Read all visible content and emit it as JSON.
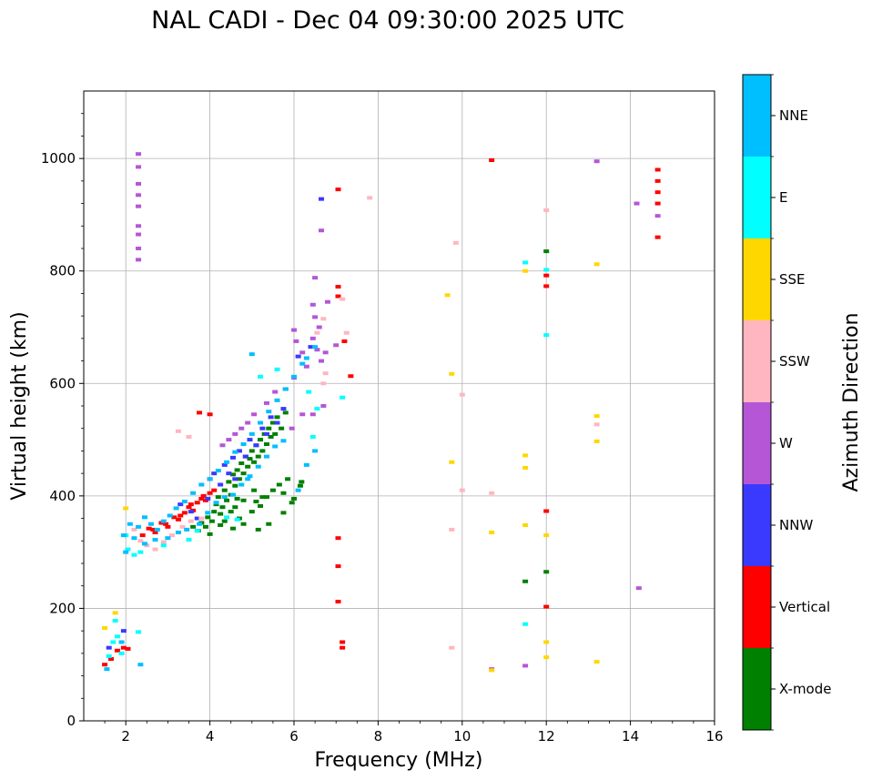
{
  "chart_data": {
    "type": "scatter",
    "title": "NAL CADI - Dec 04 09:30:00 2025 UTC",
    "xlabel": "Frequency (MHz)",
    "ylabel": "Virtual height (km)",
    "xlim": [
      1,
      16
    ],
    "ylim": [
      0,
      1120
    ],
    "xticks": [
      2,
      4,
      6,
      8,
      10,
      12,
      14,
      16
    ],
    "yticks": [
      0,
      200,
      400,
      600,
      800,
      1000
    ],
    "xtick_labels": [
      "2",
      "4",
      "6",
      "8",
      "10",
      "12",
      "14",
      "16"
    ],
    "ytick_labels": [
      "0",
      "200",
      "400",
      "600",
      "800",
      "1000"
    ],
    "grid": true,
    "colorbar": {
      "label": "Azimuth Direction",
      "categories": [
        "X-mode",
        "Vertical",
        "NNW",
        "W",
        "SSW",
        "SSE",
        "E",
        "NNE"
      ],
      "colors": [
        "#008000",
        "#ff0000",
        "#3a3aff",
        "#b556d6",
        "#ffb6c1",
        "#ffd700",
        "#00ffff",
        "#00bfff"
      ]
    },
    "series": [
      {
        "name": "X-mode",
        "points": [
          [
            3.72,
            338
          ],
          [
            3.8,
            352
          ],
          [
            3.9,
            345
          ],
          [
            3.95,
            362
          ],
          [
            4.05,
            355
          ],
          [
            4.1,
            372
          ],
          [
            4.15,
            385
          ],
          [
            4.2,
            398
          ],
          [
            4.25,
            368
          ],
          [
            4.3,
            380
          ],
          [
            4.35,
            410
          ],
          [
            4.4,
            392
          ],
          [
            4.45,
            425
          ],
          [
            4.5,
            402
          ],
          [
            4.55,
            438
          ],
          [
            4.6,
            418
          ],
          [
            4.65,
            446
          ],
          [
            4.7,
            430
          ],
          [
            4.75,
            458
          ],
          [
            4.8,
            440
          ],
          [
            4.85,
            470
          ],
          [
            4.9,
            452
          ],
          [
            4.95,
            466
          ],
          [
            5.0,
            480
          ],
          [
            5.05,
            460
          ],
          [
            5.1,
            490
          ],
          [
            5.15,
            470
          ],
          [
            5.2,
            500
          ],
          [
            5.25,
            480
          ],
          [
            5.3,
            510
          ],
          [
            5.35,
            492
          ],
          [
            5.4,
            520
          ],
          [
            5.45,
            505
          ],
          [
            5.5,
            530
          ],
          [
            5.55,
            510
          ],
          [
            5.6,
            540
          ],
          [
            5.7,
            520
          ],
          [
            5.8,
            548
          ],
          [
            4.5,
            372
          ],
          [
            4.6,
            380
          ],
          [
            4.7,
            360
          ],
          [
            4.8,
            392
          ],
          [
            5.0,
            372
          ],
          [
            5.1,
            390
          ],
          [
            5.2,
            382
          ],
          [
            5.35,
            398
          ],
          [
            5.5,
            410
          ],
          [
            5.65,
            420
          ],
          [
            5.75,
            405
          ],
          [
            5.85,
            430
          ],
          [
            6.0,
            395
          ],
          [
            4.35,
            355
          ],
          [
            4.55,
            342
          ],
          [
            4.8,
            350
          ],
          [
            5.15,
            340
          ],
          [
            5.4,
            350
          ],
          [
            5.75,
            370
          ],
          [
            5.95,
            388
          ],
          [
            3.6,
            345
          ],
          [
            4.0,
            332
          ],
          [
            4.25,
            348
          ],
          [
            4.65,
            395
          ],
          [
            5.05,
            410
          ],
          [
            5.25,
            398
          ],
          [
            6.15,
            418
          ],
          [
            6.18,
            425
          ],
          [
            12.0,
            835
          ],
          [
            12.0,
            265
          ],
          [
            11.5,
            248
          ]
        ]
      },
      {
        "name": "Vertical",
        "points": [
          [
            2.4,
            330
          ],
          [
            2.55,
            342
          ],
          [
            2.7,
            335
          ],
          [
            2.85,
            352
          ],
          [
            3.0,
            345
          ],
          [
            3.15,
            362
          ],
          [
            3.25,
            358
          ],
          [
            3.4,
            370
          ],
          [
            3.5,
            380
          ],
          [
            3.6,
            374
          ],
          [
            3.7,
            388
          ],
          [
            3.8,
            395
          ],
          [
            3.9,
            392
          ],
          [
            4.0,
            405
          ],
          [
            4.1,
            410
          ],
          [
            3.3,
            365
          ],
          [
            3.55,
            385
          ],
          [
            3.85,
            400
          ],
          [
            2.95,
            350
          ],
          [
            2.65,
            340
          ],
          [
            4.0,
            545
          ],
          [
            3.75,
            548
          ],
          [
            1.5,
            100
          ],
          [
            1.65,
            110
          ],
          [
            1.8,
            125
          ],
          [
            1.95,
            130
          ],
          [
            2.05,
            128
          ],
          [
            7.05,
            945
          ],
          [
            7.05,
            772
          ],
          [
            7.05,
            755
          ],
          [
            7.2,
            675
          ],
          [
            7.35,
            613
          ],
          [
            7.05,
            325
          ],
          [
            7.05,
            275
          ],
          [
            7.05,
            212
          ],
          [
            7.15,
            140
          ],
          [
            7.15,
            130
          ],
          [
            10.7,
            997
          ],
          [
            12.0,
            792
          ],
          [
            12.0,
            773
          ],
          [
            12.0,
            373
          ],
          [
            12.0,
            203
          ],
          [
            14.65,
            980
          ],
          [
            14.65,
            960
          ],
          [
            14.65,
            940
          ],
          [
            14.65,
            920
          ],
          [
            14.65,
            860
          ]
        ]
      },
      {
        "name": "NNW",
        "points": [
          [
            3.3,
            385
          ],
          [
            3.55,
            372
          ],
          [
            3.7,
            360
          ],
          [
            3.95,
            395
          ],
          [
            4.0,
            430
          ],
          [
            4.1,
            440
          ],
          [
            4.25,
            420
          ],
          [
            4.35,
            455
          ],
          [
            4.45,
            440
          ],
          [
            4.55,
            468
          ],
          [
            4.6,
            430
          ],
          [
            4.7,
            480
          ],
          [
            4.85,
            470
          ],
          [
            4.95,
            500
          ],
          [
            5.1,
            490
          ],
          [
            5.25,
            520
          ],
          [
            5.35,
            510
          ],
          [
            5.45,
            540
          ],
          [
            5.6,
            530
          ],
          [
            5.75,
            555
          ],
          [
            6.1,
            648
          ],
          [
            6.4,
            665
          ],
          [
            6.65,
            928
          ],
          [
            1.95,
            160
          ],
          [
            1.6,
            130
          ]
        ]
      },
      {
        "name": "W",
        "points": [
          [
            2.3,
            1008
          ],
          [
            2.3,
            985
          ],
          [
            2.3,
            955
          ],
          [
            2.3,
            935
          ],
          [
            2.3,
            915
          ],
          [
            2.3,
            880
          ],
          [
            2.3,
            865
          ],
          [
            2.3,
            840
          ],
          [
            2.3,
            820
          ],
          [
            6.45,
            740
          ],
          [
            6.5,
            718
          ],
          [
            6.6,
            700
          ],
          [
            6.45,
            680
          ],
          [
            6.55,
            660
          ],
          [
            6.65,
            640
          ],
          [
            6.0,
            695
          ],
          [
            6.05,
            675
          ],
          [
            6.2,
            655
          ],
          [
            6.3,
            630
          ],
          [
            6.0,
            610
          ],
          [
            5.8,
            590
          ],
          [
            5.55,
            585
          ],
          [
            5.35,
            565
          ],
          [
            5.05,
            545
          ],
          [
            4.9,
            530
          ],
          [
            4.75,
            520
          ],
          [
            4.6,
            510
          ],
          [
            4.45,
            500
          ],
          [
            4.3,
            490
          ],
          [
            6.45,
            545
          ],
          [
            6.7,
            560
          ],
          [
            6.2,
            545
          ],
          [
            5.95,
            520
          ],
          [
            6.8,
            745
          ],
          [
            7.0,
            668
          ],
          [
            6.75,
            655
          ],
          [
            13.2,
            995
          ],
          [
            14.15,
            920
          ],
          [
            14.65,
            898
          ],
          [
            14.2,
            236
          ],
          [
            10.7,
            92
          ],
          [
            11.5,
            98
          ],
          [
            6.65,
            872
          ],
          [
            6.5,
            788
          ]
        ]
      },
      {
        "name": "SSW",
        "points": [
          [
            2.2,
            340
          ],
          [
            2.35,
            320
          ],
          [
            2.5,
            312
          ],
          [
            2.7,
            305
          ],
          [
            2.9,
            318
          ],
          [
            3.1,
            330
          ],
          [
            3.35,
            345
          ],
          [
            3.55,
            355
          ],
          [
            3.8,
            360
          ],
          [
            3.25,
            515
          ],
          [
            3.5,
            505
          ],
          [
            6.7,
            715
          ],
          [
            6.55,
            690
          ],
          [
            6.75,
            618
          ],
          [
            7.8,
            930
          ],
          [
            12.0,
            908
          ],
          [
            13.2,
            527
          ],
          [
            10.0,
            580
          ],
          [
            10.0,
            410
          ],
          [
            10.7,
            405
          ],
          [
            9.75,
            340
          ],
          [
            9.75,
            130
          ],
          [
            9.85,
            850
          ],
          [
            7.15,
            750
          ],
          [
            7.25,
            690
          ],
          [
            6.7,
            600
          ]
        ]
      },
      {
        "name": "SSE",
        "points": [
          [
            1.5,
            165
          ],
          [
            1.75,
            192
          ],
          [
            2.0,
            378
          ],
          [
            9.65,
            757
          ],
          [
            9.75,
            617
          ],
          [
            9.75,
            460
          ],
          [
            10.7,
            335
          ],
          [
            10.7,
            90
          ],
          [
            11.5,
            800
          ],
          [
            11.5,
            472
          ],
          [
            11.5,
            450
          ],
          [
            11.5,
            348
          ],
          [
            12.0,
            330
          ],
          [
            12.0,
            140
          ],
          [
            12.0,
            113
          ],
          [
            13.2,
            812
          ],
          [
            13.2,
            542
          ],
          [
            13.2,
            497
          ],
          [
            13.2,
            105
          ]
        ]
      },
      {
        "name": "E",
        "points": [
          [
            1.6,
            115
          ],
          [
            1.7,
            140
          ],
          [
            1.8,
            150
          ],
          [
            1.9,
            120
          ],
          [
            2.0,
            330
          ],
          [
            2.05,
            305
          ],
          [
            2.2,
            295
          ],
          [
            2.35,
            300
          ],
          [
            2.9,
            312
          ],
          [
            3.5,
            322
          ],
          [
            3.7,
            338
          ],
          [
            4.4,
            362
          ],
          [
            4.65,
            358
          ],
          [
            5.2,
            612
          ],
          [
            5.6,
            625
          ],
          [
            6.35,
            585
          ],
          [
            6.55,
            555
          ],
          [
            6.45,
            505
          ],
          [
            7.15,
            575
          ],
          [
            11.5,
            815
          ],
          [
            11.5,
            172
          ],
          [
            12.0,
            802
          ],
          [
            12.0,
            686
          ],
          [
            1.75,
            178
          ],
          [
            2.3,
            158
          ]
        ]
      },
      {
        "name": "NNE",
        "points": [
          [
            2.1,
            350
          ],
          [
            2.3,
            345
          ],
          [
            2.45,
            362
          ],
          [
            2.6,
            350
          ],
          [
            2.75,
            340
          ],
          [
            2.9,
            355
          ],
          [
            3.05,
            365
          ],
          [
            3.2,
            378
          ],
          [
            3.4,
            390
          ],
          [
            3.6,
            405
          ],
          [
            3.8,
            420
          ],
          [
            4.0,
            430
          ],
          [
            4.2,
            445
          ],
          [
            4.4,
            460
          ],
          [
            4.6,
            478
          ],
          [
            4.8,
            492
          ],
          [
            5.0,
            510
          ],
          [
            5.2,
            530
          ],
          [
            5.4,
            550
          ],
          [
            5.6,
            570
          ],
          [
            5.8,
            590
          ],
          [
            6.0,
            612
          ],
          [
            6.2,
            635
          ],
          [
            6.3,
            645
          ],
          [
            6.5,
            665
          ],
          [
            2.2,
            325
          ],
          [
            2.45,
            315
          ],
          [
            2.7,
            322
          ],
          [
            3.0,
            325
          ],
          [
            3.25,
            335
          ],
          [
            3.45,
            340
          ],
          [
            3.75,
            350
          ],
          [
            3.95,
            370
          ],
          [
            4.15,
            388
          ],
          [
            4.35,
            398
          ],
          [
            4.55,
            402
          ],
          [
            4.75,
            420
          ],
          [
            4.95,
            435
          ],
          [
            5.15,
            452
          ],
          [
            5.35,
            470
          ],
          [
            5.55,
            488
          ],
          [
            5.75,
            498
          ],
          [
            6.1,
            410
          ],
          [
            6.3,
            455
          ],
          [
            6.5,
            480
          ],
          [
            5.0,
            652
          ],
          [
            4.9,
            430
          ],
          [
            2.0,
            300
          ],
          [
            1.95,
            330
          ],
          [
            1.55,
            92
          ],
          [
            2.35,
            100
          ],
          [
            1.9,
            140
          ]
        ]
      }
    ]
  }
}
